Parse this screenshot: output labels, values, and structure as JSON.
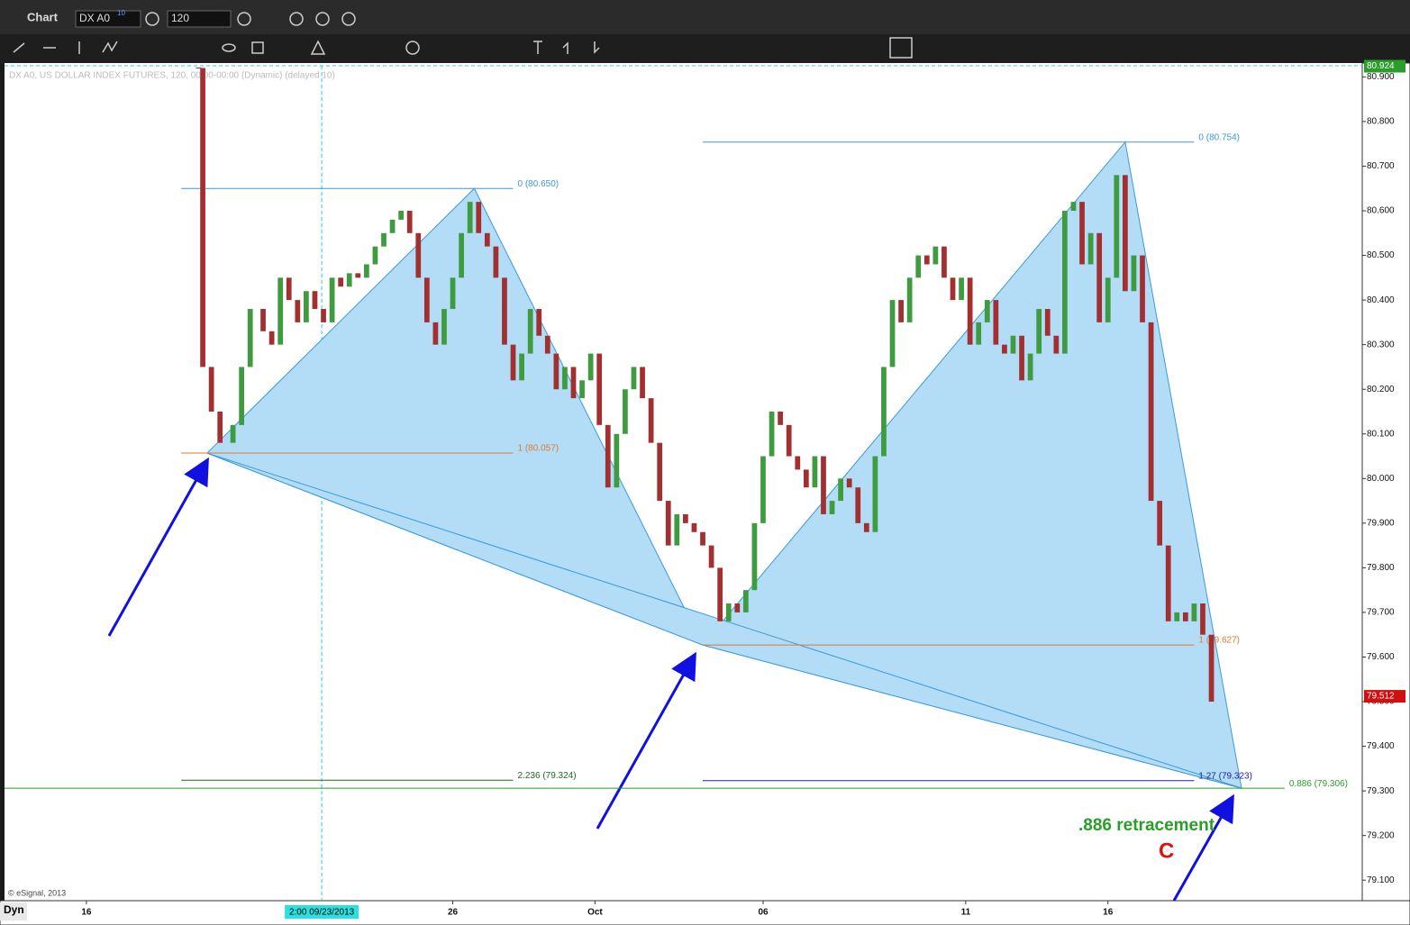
{
  "window": {
    "title": "Chart",
    "symbol": "DX A0",
    "symbol_badge": "10",
    "interval": "120",
    "mode": "Dyn"
  },
  "chart_data": {
    "type": "candlestick",
    "header": "DX A0, US DOLLAR INDEX FUTURES, 120, 00:00-00:00 (Dynamic) (delayed 10)",
    "copyright": "© eSignal, 2013",
    "x": [
      45,
      46,
      48,
      50,
      53,
      55,
      57,
      60,
      62,
      64,
      66,
      68,
      70,
      72,
      74,
      76,
      78,
      80,
      82,
      84,
      86,
      88,
      90,
      92,
      94,
      96,
      98,
      100,
      102,
      104,
      106,
      108,
      110,
      112,
      114,
      116,
      118,
      120,
      122,
      124,
      126,
      128,
      130,
      132,
      134,
      136,
      138,
      140,
      142,
      144,
      146,
      148,
      150,
      152,
      154,
      156,
      158,
      160,
      162,
      164,
      166,
      168,
      170,
      172,
      174,
      176,
      178,
      180,
      182,
      184,
      186,
      188,
      190,
      192,
      194,
      196,
      198,
      200,
      202,
      204,
      206,
      208,
      210,
      212,
      214,
      216,
      218,
      220,
      222,
      224,
      226,
      228,
      230,
      232,
      234,
      236,
      238,
      240,
      242,
      244,
      246,
      248,
      250,
      252,
      254,
      256,
      258,
      260,
      262,
      264,
      266,
      268,
      270,
      272,
      274,
      276,
      278,
      280
    ],
    "close": [
      80.92,
      80.25,
      80.15,
      80.08,
      80.12,
      80.25,
      80.38,
      80.33,
      80.3,
      80.45,
      80.4,
      80.35,
      80.42,
      80.38,
      80.35,
      80.45,
      80.43,
      80.46,
      80.45,
      80.48,
      80.52,
      80.55,
      80.58,
      80.6,
      80.55,
      80.45,
      80.35,
      80.3,
      80.38,
      80.45,
      80.55,
      80.62,
      80.55,
      80.52,
      80.45,
      80.3,
      80.22,
      80.28,
      80.38,
      80.32,
      80.28,
      80.2,
      80.25,
      80.18,
      80.22,
      80.28,
      80.12,
      79.98,
      80.1,
      80.2,
      80.25,
      80.18,
      80.08,
      79.95,
      79.85,
      79.92,
      79.9,
      79.88,
      79.85,
      79.8,
      79.68,
      79.72,
      79.7,
      79.75,
      79.9,
      80.05,
      80.15,
      80.12,
      80.05,
      80.02,
      79.98,
      80.05,
      79.92,
      79.95,
      80.0,
      79.98,
      79.9,
      79.88,
      80.05,
      80.25,
      80.4,
      80.35,
      80.45,
      80.5,
      80.48,
      80.52,
      80.45,
      80.4,
      80.45,
      80.3,
      80.35,
      80.4,
      80.3,
      80.28,
      80.32,
      80.22,
      80.28,
      80.38,
      80.32,
      80.28,
      80.6,
      80.62,
      80.48,
      80.55,
      80.35,
      80.45,
      80.68,
      80.42,
      80.5,
      80.35,
      79.95,
      79.85,
      79.68,
      79.7,
      79.68,
      79.72,
      79.65,
      79.5
    ],
    "up_color": "#3f9b3f",
    "down_color": "#a33030",
    "xlim": [
      0,
      315
    ],
    "xticks": [
      {
        "value": 19,
        "label": "16"
      },
      {
        "value": 104,
        "label": "26"
      },
      {
        "value": 137,
        "label": "Oct"
      },
      {
        "value": 176,
        "label": "06"
      },
      {
        "value": 223,
        "label": "11"
      },
      {
        "value": 256,
        "label": "16"
      }
    ],
    "ylim": [
      79.054,
      80.925
    ],
    "yticks": [
      {
        "value": 79.1,
        "label": "79.100"
      },
      {
        "value": 79.2,
        "label": "79.200"
      },
      {
        "value": 79.3,
        "label": "79.300"
      },
      {
        "value": 79.4,
        "label": "79.400"
      },
      {
        "value": 79.5,
        "label": "79.500"
      },
      {
        "value": 79.6,
        "label": "79.600"
      },
      {
        "value": 79.7,
        "label": "79.700"
      },
      {
        "value": 79.8,
        "label": "79.800"
      },
      {
        "value": 79.9,
        "label": "79.900"
      },
      {
        "value": 80.0,
        "label": "80.000"
      },
      {
        "value": 80.1,
        "label": "80.100"
      },
      {
        "value": 80.2,
        "label": "80.200"
      },
      {
        "value": 80.3,
        "label": "80.300"
      },
      {
        "value": 80.4,
        "label": "80.400"
      },
      {
        "value": 80.5,
        "label": "80.500"
      },
      {
        "value": 80.6,
        "label": "80.600"
      },
      {
        "value": 80.7,
        "label": "80.700"
      },
      {
        "value": 80.8,
        "label": "80.800"
      },
      {
        "value": 80.9,
        "label": "80.900"
      }
    ],
    "price_markers": [
      {
        "value": 80.924,
        "label": "80.924",
        "color": "#2a9d2a"
      },
      {
        "value": 79.512,
        "label": "79.512",
        "color": "#d01010"
      }
    ],
    "crosshair": {
      "x": 73.6,
      "label": "2:00 09/23/2013"
    },
    "pattern": {
      "color": "#b3dcf7",
      "stroke": "#3a9ad9",
      "points": [
        {
          "x": 47,
          "y": 80.057
        },
        {
          "x": 109,
          "y": 80.65
        },
        {
          "x": 162,
          "y": 79.627
        },
        {
          "x": 260,
          "y": 80.754
        },
        {
          "x": 287,
          "y": 79.306
        }
      ]
    },
    "levels": [
      {
        "label": "0 (80.650)",
        "value": 80.65,
        "x_start": 41,
        "x_end": 118,
        "color": "#3a9ad9"
      },
      {
        "label": "1 (80.057)",
        "value": 80.057,
        "x_start": 41,
        "x_end": 118,
        "color": "#e07a30"
      },
      {
        "label": "2.236 (79.324)",
        "value": 79.324,
        "x_start": 41,
        "x_end": 118,
        "color": "#1f6b1f"
      },
      {
        "label": "0 (80.754)",
        "value": 80.754,
        "x_start": 162,
        "x_end": 276,
        "color": "#3a9ad9"
      },
      {
        "label": "1 (79.627)",
        "value": 79.627,
        "x_start": 162,
        "x_end": 276,
        "color": "#e07a30"
      },
      {
        "label": "1.27 (79.323)",
        "value": 79.323,
        "x_start": 162,
        "x_end": 276,
        "color": "#2020a0"
      },
      {
        "label": "0.886 (79.306)",
        "value": 79.306,
        "x_start": 0,
        "x_end": 297,
        "color": "#2a9d2a"
      }
    ],
    "annotations": [
      {
        "text": ".886 retracement",
        "color": "#2a9d2a"
      },
      {
        "text": "C",
        "color": "#e01010"
      }
    ]
  }
}
